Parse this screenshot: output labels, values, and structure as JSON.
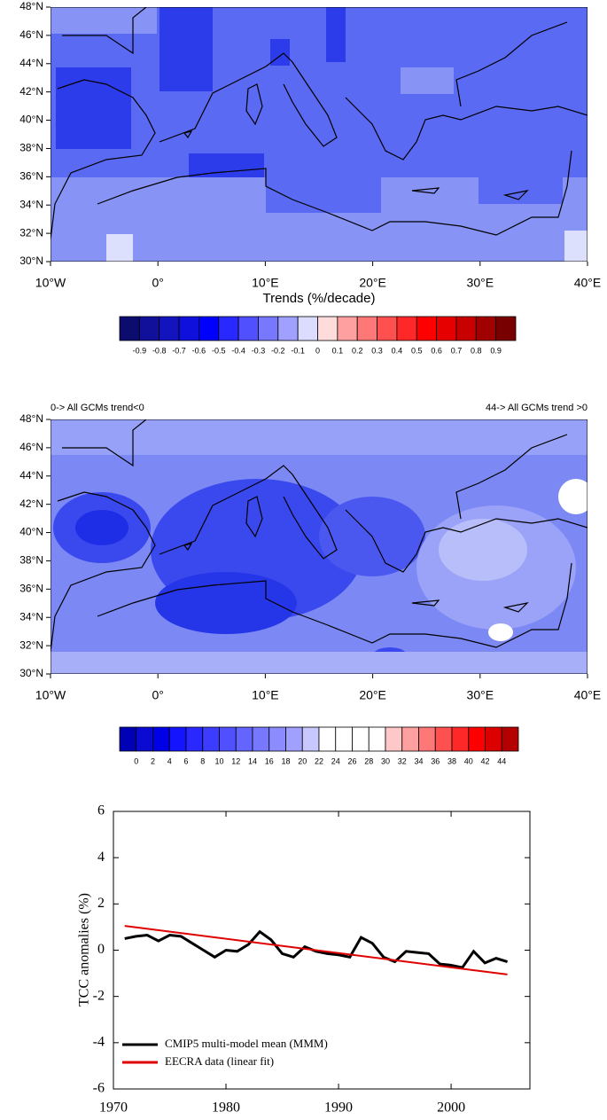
{
  "chart_data": [
    {
      "type": "map",
      "xlabel": "Trends (%/decade)",
      "xlim": [
        -10,
        40
      ],
      "ylim": [
        30,
        48
      ],
      "xticks": [
        {
          "value": -10,
          "label": "10°W"
        },
        {
          "value": 0,
          "label": "0°"
        },
        {
          "value": 10,
          "label": "10°E"
        },
        {
          "value": 20,
          "label": "20°E"
        },
        {
          "value": 30,
          "label": "30°E"
        },
        {
          "value": 40,
          "label": "40°E"
        }
      ],
      "yticks": [
        {
          "value": 30,
          "label": "30°N"
        },
        {
          "value": 32,
          "label": "32°N"
        },
        {
          "value": 34,
          "label": "34°N"
        },
        {
          "value": 36,
          "label": "36°N"
        },
        {
          "value": 38,
          "label": "38°N"
        },
        {
          "value": 40,
          "label": "40°N"
        },
        {
          "value": 42,
          "label": "42°N"
        },
        {
          "value": 44,
          "label": "44°N"
        },
        {
          "value": 46,
          "label": "46°N"
        },
        {
          "value": 48,
          "label": "48°N"
        }
      ],
      "colorbar": {
        "levels": [
          -0.9,
          -0.8,
          -0.7,
          -0.6,
          -0.5,
          -0.4,
          -0.3,
          -0.2,
          -0.1,
          0,
          0.1,
          0.2,
          0.3,
          0.4,
          0.5,
          0.6,
          0.7,
          0.8,
          0.9
        ],
        "colors": [
          "#0c0c6e",
          "#10109a",
          "#1414be",
          "#1010dc",
          "#0000ff",
          "#2828ff",
          "#5050ff",
          "#7878ff",
          "#a0a0ff",
          "#dcdcff",
          "#ffdcdc",
          "#ffa0a0",
          "#ff7878",
          "#ff5050",
          "#ff2828",
          "#ff0000",
          "#e60000",
          "#c80000",
          "#a00000",
          "#780000"
        ]
      }
    },
    {
      "type": "map",
      "annotations": [
        "0-> All GCMs trend<0",
        "44-> All GCMs trend >0"
      ],
      "xlim": [
        -10,
        40
      ],
      "ylim": [
        30,
        48
      ],
      "xticks": [
        {
          "value": -10,
          "label": "10°W"
        },
        {
          "value": 0,
          "label": "0°"
        },
        {
          "value": 10,
          "label": "10°E"
        },
        {
          "value": 20,
          "label": "20°E"
        },
        {
          "value": 30,
          "label": "30°E"
        },
        {
          "value": 40,
          "label": "40°E"
        }
      ],
      "yticks": [
        {
          "value": 30,
          "label": "30°N"
        },
        {
          "value": 32,
          "label": "32°N"
        },
        {
          "value": 34,
          "label": "34°N"
        },
        {
          "value": 36,
          "label": "36°N"
        },
        {
          "value": 38,
          "label": "38°N"
        },
        {
          "value": 40,
          "label": "40°N"
        },
        {
          "value": 42,
          "label": "42°N"
        },
        {
          "value": 44,
          "label": "44°N"
        },
        {
          "value": 46,
          "label": "46°N"
        },
        {
          "value": 48,
          "label": "48°N"
        }
      ],
      "colorbar": {
        "levels": [
          0,
          2,
          4,
          6,
          8,
          10,
          12,
          14,
          16,
          18,
          20,
          22,
          24,
          26,
          28,
          30,
          32,
          34,
          36,
          38,
          40,
          42,
          44
        ],
        "colors": [
          "#0000b4",
          "#0a0ad2",
          "#0000e6",
          "#1414ff",
          "#2828ff",
          "#3c3cff",
          "#5050ff",
          "#6464ff",
          "#7878ff",
          "#8c8cff",
          "#a0a0ff",
          "#c8c8ff",
          "#ffffff",
          "#ffffff",
          "#ffffff",
          "#ffffff",
          "#ffc8c8",
          "#ffa0a0",
          "#ff7878",
          "#ff5050",
          "#ff2828",
          "#ff0000",
          "#dc0000",
          "#b40000"
        ]
      }
    },
    {
      "type": "line",
      "ylabel": "TCC anomalies (%)",
      "xlim": [
        1970,
        2007
      ],
      "ylim": [
        -6,
        6
      ],
      "xticks": [
        1970,
        1980,
        1990,
        2000
      ],
      "yticks": [
        -6,
        -4,
        -2,
        0,
        2,
        4,
        6
      ],
      "legend": "lower left",
      "series": [
        {
          "name": "CMIP5 multi-model mean (MMM)",
          "color": "#000000",
          "x": [
            1971,
            1972,
            1973,
            1974,
            1975,
            1976,
            1977,
            1978,
            1979,
            1980,
            1981,
            1982,
            1983,
            1984,
            1985,
            1986,
            1987,
            1988,
            1989,
            1990,
            1991,
            1992,
            1993,
            1994,
            1995,
            1996,
            1997,
            1998,
            1999,
            2000,
            2001,
            2002,
            2003,
            2004,
            2005
          ],
          "values": [
            0.5,
            0.6,
            0.65,
            0.4,
            0.65,
            0.6,
            0.3,
            0.0,
            -0.3,
            0.0,
            -0.05,
            0.25,
            0.8,
            0.45,
            -0.15,
            -0.3,
            0.15,
            -0.05,
            -0.15,
            -0.2,
            -0.3,
            0.55,
            0.3,
            -0.3,
            -0.5,
            -0.05,
            -0.1,
            -0.15,
            -0.6,
            -0.65,
            -0.75,
            -0.05,
            -0.55,
            -0.35,
            -0.5
          ]
        },
        {
          "name": "EECRA data (linear fit)",
          "color": "#e00000",
          "x": [
            1971,
            2005
          ],
          "values": [
            1.05,
            -1.05
          ]
        }
      ]
    }
  ]
}
